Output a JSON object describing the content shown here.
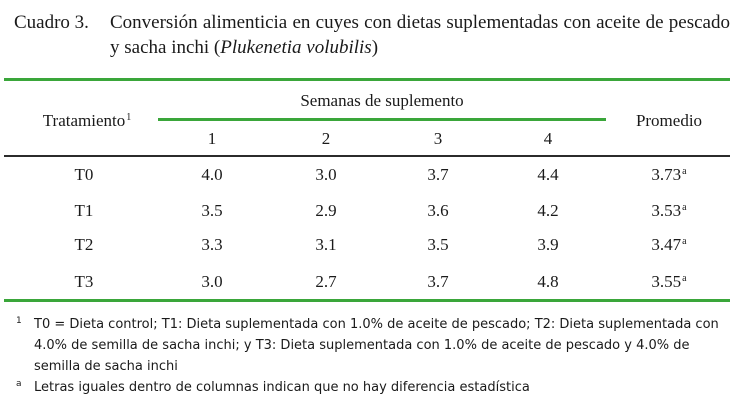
{
  "caption": {
    "label": "Cuadro 3.",
    "text": "Conversión alimenticia en cuyes con dietas suplementadas con aceite de pescado y sacha inchi (",
    "italic": "Plukenetia volubilis",
    "close": ")"
  },
  "table": {
    "row_header": "Tratamiento",
    "row_header_mark": "1",
    "span_header": "Semanas de suplemento",
    "weeks": [
      "1",
      "2",
      "3",
      "4"
    ],
    "avg_header": "Promedio",
    "rows": [
      {
        "label": "T0",
        "values": [
          "4.0",
          "3.0",
          "3.7",
          "4.4"
        ],
        "avg": "3.73",
        "sig": "a"
      },
      {
        "label": "T1",
        "values": [
          "3.5",
          "2.9",
          "3.6",
          "4.2"
        ],
        "avg": "3.53",
        "sig": "a"
      },
      {
        "label": "T2",
        "values": [
          "3.3",
          "3.1",
          "3.5",
          "3.9"
        ],
        "avg": "3.47",
        "sig": "a"
      },
      {
        "label": "T3",
        "values": [
          "3.0",
          "2.7",
          "3.7",
          "4.8"
        ],
        "avg": "3.55",
        "sig": "a"
      }
    ]
  },
  "footnotes": [
    {
      "mark": "1",
      "text": "T0 = Dieta control; T1: Dieta suplementada con 1.0% de aceite de pescado; T2: Dieta suplementada con 4.0% de semilla de sacha inchi; y T3: Dieta suplementada con 1.0% de aceite de pescado y 4.0% de semilla de sacha inchi"
    },
    {
      "mark": "a",
      "text": "Letras iguales dentro de columnas indican que no hay diferencia estadística"
    }
  ],
  "colors": {
    "rule_accent": "#3aa63a",
    "rule_dark": "#2b2b2b"
  }
}
